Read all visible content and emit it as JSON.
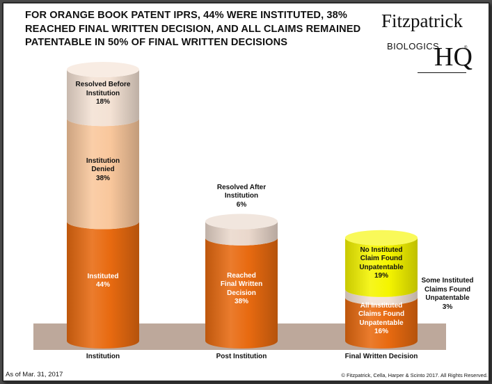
{
  "title": "FOR ORANGE BOOK PATENT IPRS, 44% WERE INSTITUTED, 38% REACHED FINAL WRITTEN DECISION, AND ALL CLAIMS REMAINED PATENTABLE IN 50% OF FINAL WRITTEN DECISIONS",
  "logo": {
    "line1": "Fitzpatrick",
    "line2": "BIOLOGICS",
    "line3": "HQ",
    "reg": "®"
  },
  "footnote": "As of Mar. 31, 2017",
  "copyright": "© Fitzpatrick, Cella, Harper & Scinto 2017. All Rights Reserved.",
  "colors": {
    "orange": "#e86a10",
    "peach": "#f9c79c",
    "cream": "#f4e2d4",
    "taupe": "#ead8cc",
    "yellow": "#f5f500",
    "floor": "#bda89b"
  },
  "chart_data": {
    "type": "bar",
    "stacked": true,
    "ylim": [
      0,
      100
    ],
    "categories": [
      "Institution",
      "Post Institution",
      "Final Written Decision"
    ],
    "bars": [
      {
        "category": "Institution",
        "segments": [
          {
            "label": "Instituted",
            "lines": [
              "Instituted",
              "44%"
            ],
            "value": 44,
            "color": "#e86a10",
            "text": "light"
          },
          {
            "label": "Institution Denied",
            "lines": [
              "Institution",
              "Denied",
              "38%"
            ],
            "value": 38,
            "color": "#f9c79c",
            "text": "dark"
          },
          {
            "label": "Resolved Before Institution",
            "lines": [
              "Resolved Before",
              "Institution",
              "18%"
            ],
            "value": 18,
            "color": "#f4e2d4",
            "text": "dark"
          }
        ]
      },
      {
        "category": "Post Institution",
        "segments": [
          {
            "label": "Reached Final Written Decision",
            "lines": [
              "Reached",
              "Final Written",
              "Decision",
              "38%"
            ],
            "value": 38,
            "color": "#e86a10",
            "text": "light"
          },
          {
            "label": "Resolved After Institution",
            "lines": [
              "Resolved After",
              "Institution",
              "6%"
            ],
            "value": 6,
            "color": "#ead8cc",
            "text": "outside"
          }
        ]
      },
      {
        "category": "Final Written Decision",
        "segments": [
          {
            "label": "All Instituted Claims Found Unpatentable",
            "lines": [
              "All  Instituted",
              "Claims Found",
              "Unpatentable",
              "16%"
            ],
            "value": 16,
            "color": "#e86a10",
            "text": "light"
          },
          {
            "label": "Some Instituted Claims Found Unpatentable",
            "lines": [
              "Some Instituted",
              "Claims Found",
              "Unpatentable",
              "3%"
            ],
            "value": 3,
            "color": "#f4e2d4",
            "text": "side"
          },
          {
            "label": "No Instituted Claim Found Unpatentable",
            "lines": [
              "No Instituted",
              "Claim Found",
              "Unpatentable",
              "19%"
            ],
            "value": 19,
            "color": "#f5f500",
            "text": "dark"
          }
        ]
      }
    ]
  }
}
